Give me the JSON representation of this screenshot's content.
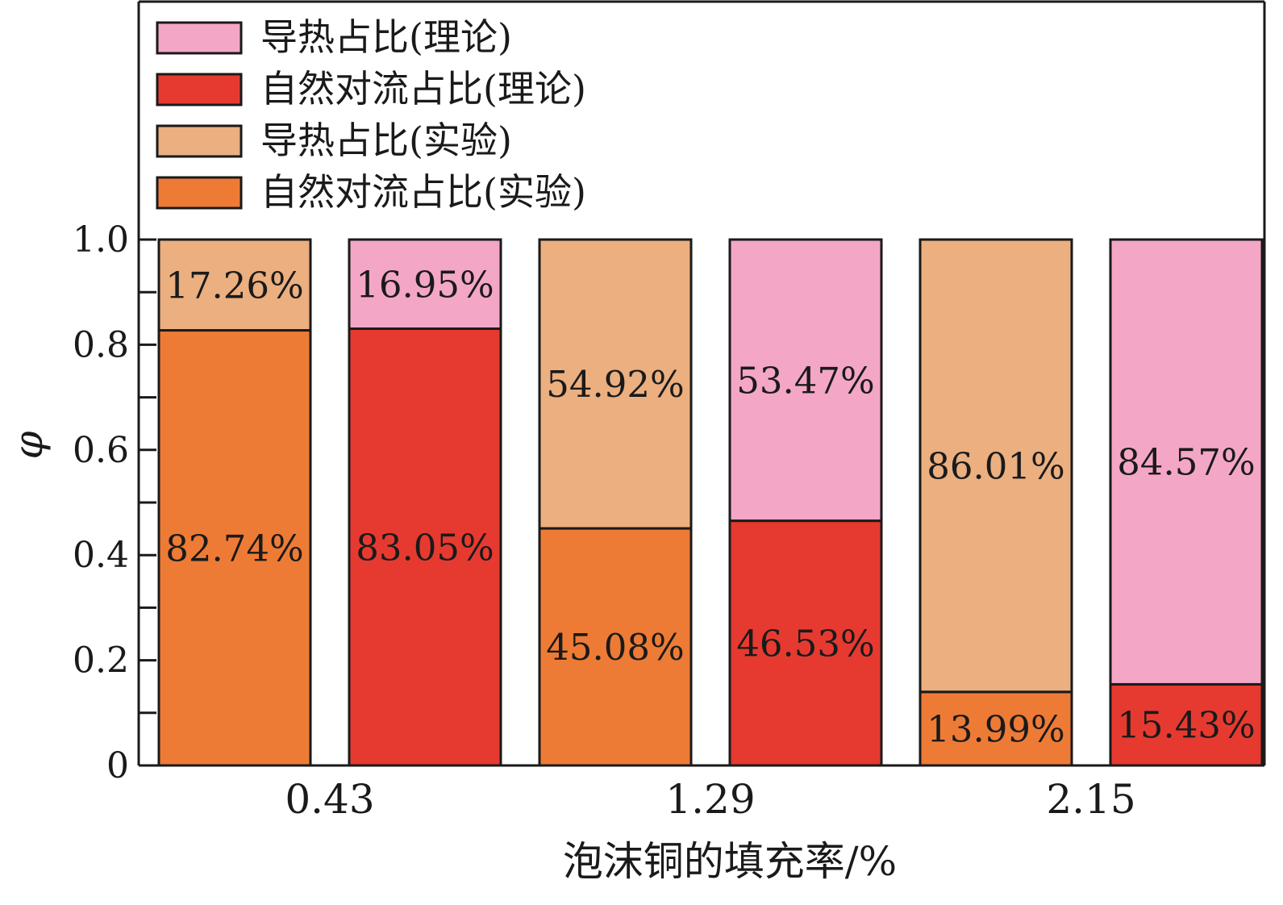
{
  "chart_data": {
    "type": "bar",
    "stacked": true,
    "xlabel": "泡沫铜的填充率/%",
    "ylabel": "φ",
    "ylim": [
      0,
      1.0
    ],
    "yticks": [
      "0",
      "0.2",
      "0.4",
      "0.6",
      "0.8",
      "1.0"
    ],
    "grid": false,
    "legend_position": "top-left",
    "categories": [
      "0.43",
      "1.29",
      "2.15"
    ],
    "series": [
      {
        "name": "导热占比(理论)",
        "color": "#F4A6C6"
      },
      {
        "name": "自然对流占比(理论)",
        "color": "#E63A30"
      },
      {
        "name": "导热占比(实验)",
        "color": "#EBAF80"
      },
      {
        "name": "自然对流占比(实验)",
        "color": "#EE7B35"
      }
    ],
    "bars": [
      {
        "category": "0.43",
        "group": "实验",
        "convection": 0.8274,
        "conduction": 0.1726,
        "convection_label": "82.74%",
        "conduction_label": "17.26%"
      },
      {
        "category": "0.43",
        "group": "理论",
        "convection": 0.8305,
        "conduction": 0.1695,
        "convection_label": "83.05%",
        "conduction_label": "16.95%"
      },
      {
        "category": "1.29",
        "group": "实验",
        "convection": 0.4508,
        "conduction": 0.5492,
        "convection_label": "45.08%",
        "conduction_label": "54.92%"
      },
      {
        "category": "1.29",
        "group": "理论",
        "convection": 0.4653,
        "conduction": 0.5347,
        "convection_label": "46.53%",
        "conduction_label": "53.47%"
      },
      {
        "category": "2.15",
        "group": "实验",
        "convection": 0.1399,
        "conduction": 0.8601,
        "convection_label": "13.99%",
        "conduction_label": "86.01%"
      },
      {
        "category": "2.15",
        "group": "理论",
        "convection": 0.1543,
        "conduction": 0.8457,
        "convection_label": "15.43%",
        "conduction_label": "84.57%"
      }
    ]
  }
}
